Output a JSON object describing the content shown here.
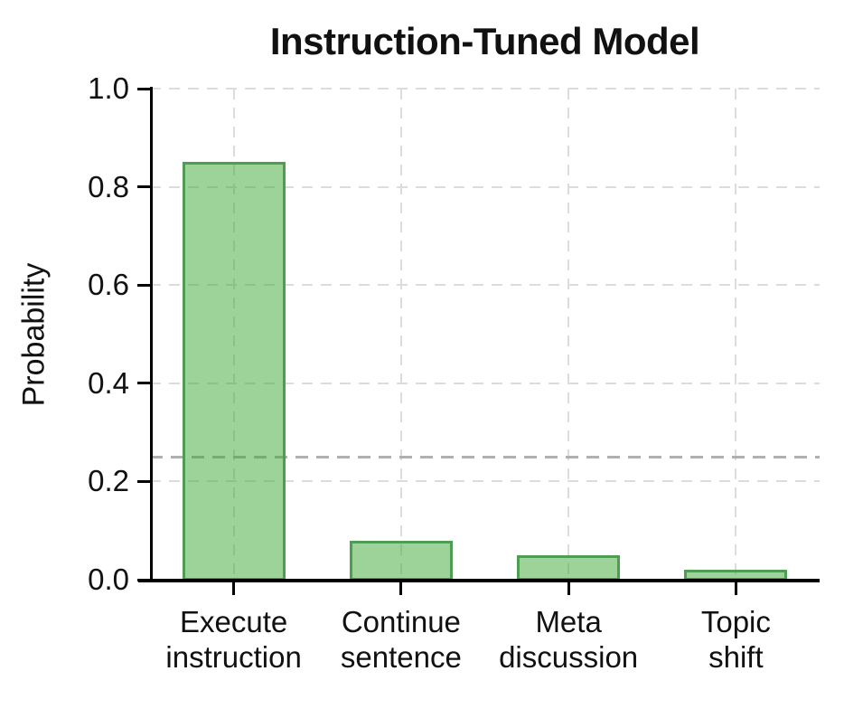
{
  "chart_data": {
    "type": "bar",
    "title": "Instruction-Tuned Model",
    "ylabel": "Probability",
    "xlabel": "",
    "categories": [
      "Execute\ninstruction",
      "Continue\nsentence",
      "Meta\ndiscussion",
      "Topic\nshift"
    ],
    "values": [
      0.85,
      0.08,
      0.05,
      0.02
    ],
    "ylim": [
      0.0,
      1.0
    ],
    "yticks": [
      1.0,
      0.8,
      0.6,
      0.4,
      0.2,
      0.0
    ],
    "ytick_labels": [
      "1.0",
      "0.8",
      "0.6",
      "0.4",
      "0.2",
      "0.0"
    ],
    "grid": "dashed",
    "legend": null,
    "reference_line": {
      "value": 0.25,
      "style": "dashed",
      "color": "#b0b0b0"
    },
    "colors": {
      "bar_fill": "#9dd399",
      "bar_fill_rgba": "rgba(59,167,51,0.5)",
      "bar_edge": "#4d9e52",
      "gridline": "#dcdcdc",
      "reference_line": "#b0b0b0",
      "axis": "#000000",
      "text": "#111111",
      "background": "#ffffff"
    }
  }
}
